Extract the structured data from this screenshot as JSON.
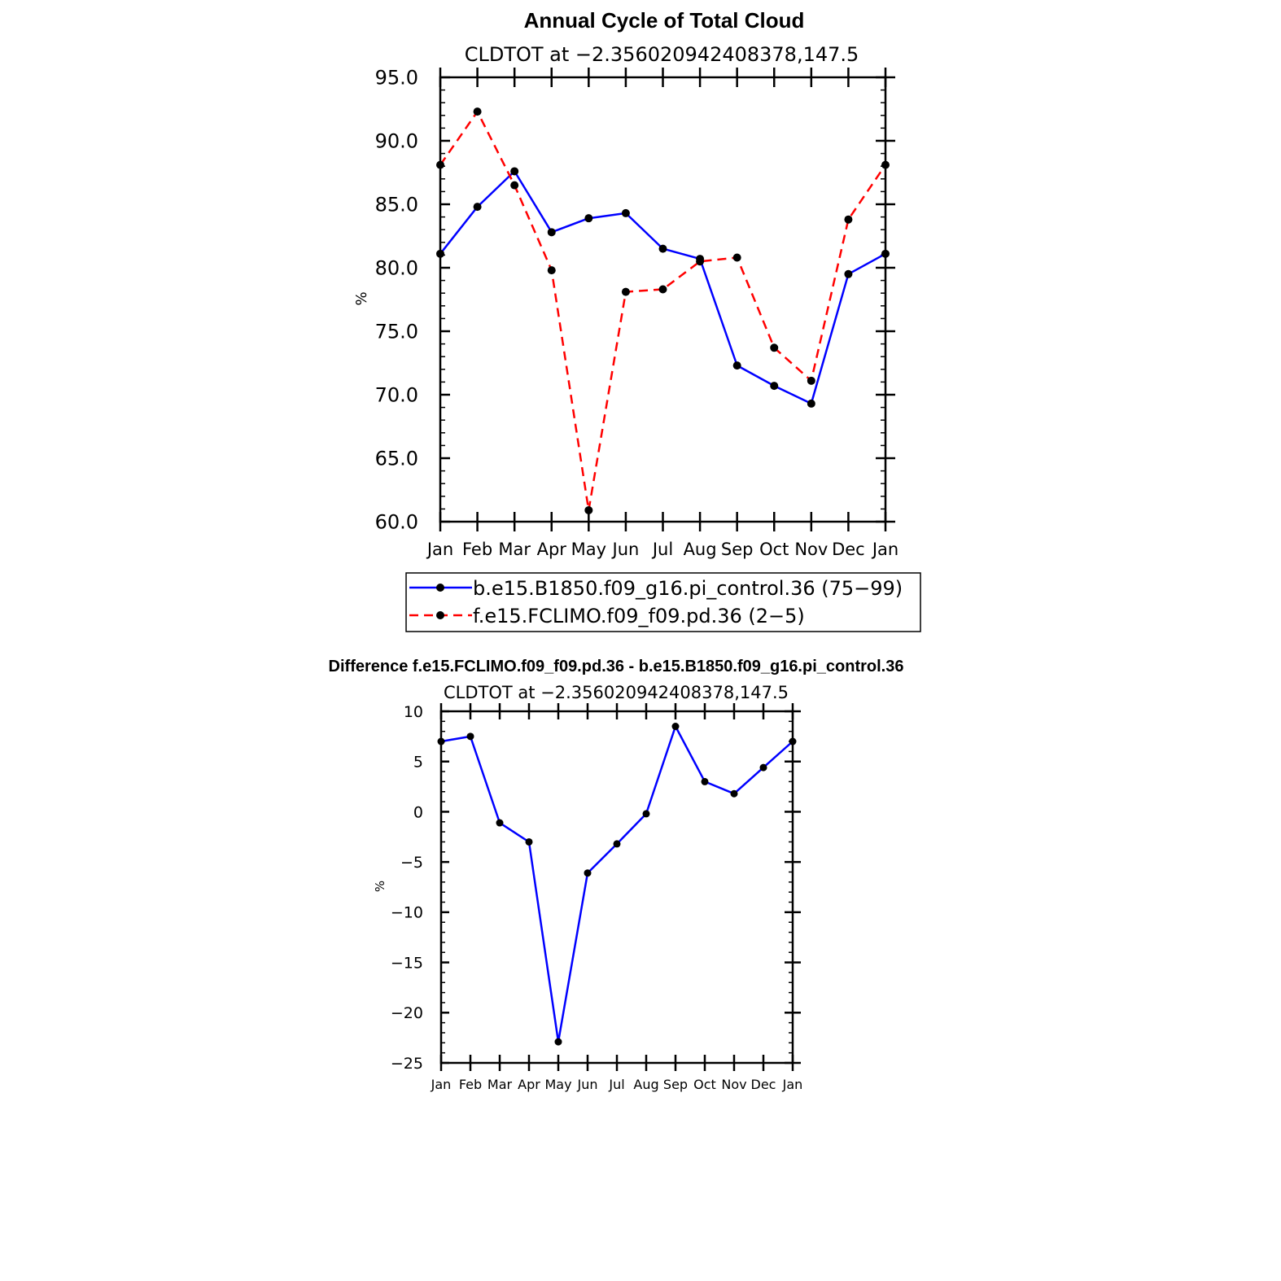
{
  "chart_data": [
    {
      "type": "line",
      "title": "Annual Cycle of Total Cloud",
      "subtitle": "CLDTOT at −2.356020942408378,147.5",
      "xlabel": "",
      "ylabel": "%",
      "categories": [
        "Jan",
        "Feb",
        "Mar",
        "Apr",
        "May",
        "Jun",
        "Jul",
        "Aug",
        "Sep",
        "Oct",
        "Nov",
        "Dec",
        "Jan"
      ],
      "yticks": [
        "60.0",
        "65.0",
        "70.0",
        "75.0",
        "80.0",
        "85.0",
        "90.0",
        "95.0"
      ],
      "ylim": [
        60,
        95
      ],
      "legend_position": "below",
      "series": [
        {
          "name": "b.e15.B1850.f09_g16.pi_control.36 (75−99)",
          "color": "#0000ff",
          "dash": "solid",
          "values": [
            81.1,
            84.8,
            87.6,
            82.8,
            83.9,
            84.3,
            81.5,
            80.7,
            72.3,
            70.7,
            69.3,
            79.5,
            81.1
          ]
        },
        {
          "name": "f.e15.FCLIMO.f09_f09.pd.36 (2−5)",
          "color": "#ff0000",
          "dash": "dashed",
          "values": [
            88.1,
            92.3,
            86.5,
            79.8,
            60.9,
            78.1,
            78.3,
            80.5,
            80.8,
            73.7,
            71.1,
            83.8,
            88.1
          ]
        }
      ]
    },
    {
      "type": "line",
      "title": "Difference f.e15.FCLIMO.f09_f09.pd.36 - b.e15.B1850.f09_g16.pi_control.36",
      "subtitle": "CLDTOT at −2.356020942408378,147.5",
      "xlabel": "",
      "ylabel": "%",
      "categories": [
        "Jan",
        "Feb",
        "Mar",
        "Apr",
        "May",
        "Jun",
        "Jul",
        "Aug",
        "Sep",
        "Oct",
        "Nov",
        "Dec",
        "Jan"
      ],
      "yticks": [
        "−25",
        "−20",
        "−15",
        "−10",
        "−5",
        "0",
        "5",
        "10"
      ],
      "ylim": [
        -25,
        10
      ],
      "series": [
        {
          "name": "difference",
          "color": "#0000ff",
          "dash": "solid",
          "values": [
            7.0,
            7.5,
            -1.1,
            -3.0,
            -22.9,
            -6.1,
            -3.2,
            -0.2,
            8.5,
            3.0,
            1.8,
            4.4,
            7.0
          ]
        }
      ]
    }
  ]
}
